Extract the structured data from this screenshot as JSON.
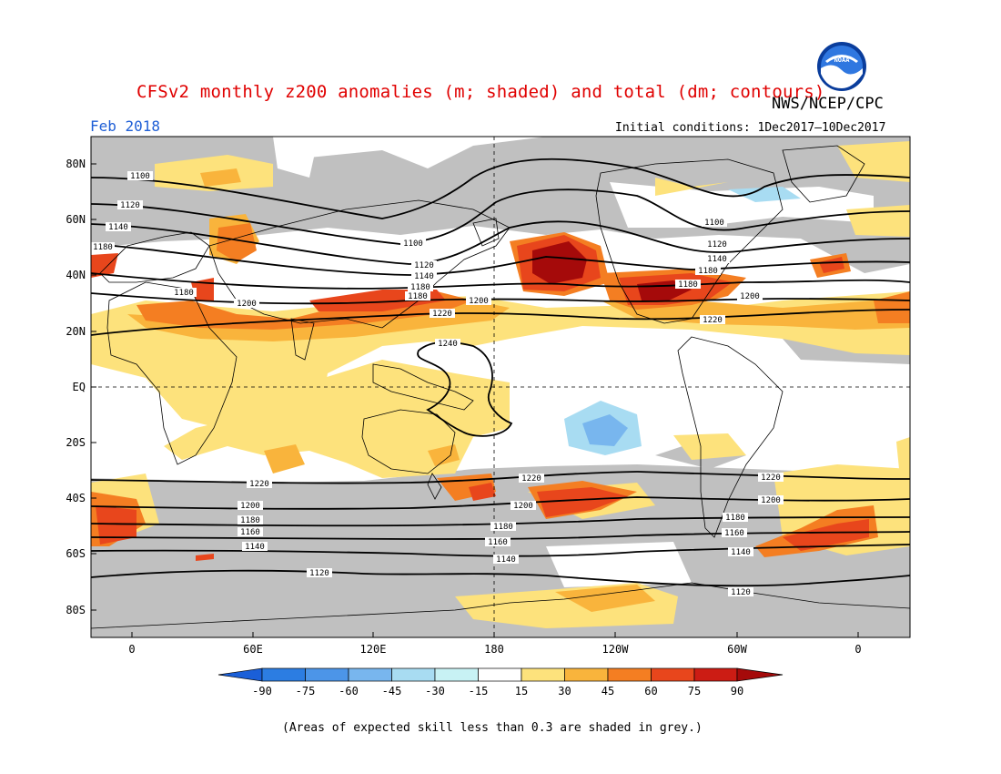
{
  "header": {
    "title": "CFSv2 monthly z200 anomalies (m; shaded) and total (dm; contours)",
    "agency": "NWS/NCEP/CPC",
    "period": "Feb 2018",
    "initial_conditions": "Initial conditions: 1Dec2017–10Dec2017",
    "logo_text": "NOAA"
  },
  "axes": {
    "lat_labels": [
      "80N",
      "60N",
      "40N",
      "20N",
      "EQ",
      "20S",
      "40S",
      "60S",
      "80S"
    ],
    "lon_labels": [
      "0",
      "60E",
      "120E",
      "180",
      "120W",
      "60W",
      "0"
    ]
  },
  "contour_labels": [
    "1100",
    "1120",
    "1140",
    "1160",
    "1180",
    "1200",
    "1220",
    "1240"
  ],
  "colorbar": {
    "ticks": [
      "-90",
      "-75",
      "-60",
      "-45",
      "-30",
      "-15",
      "15",
      "30",
      "45",
      "60",
      "75",
      "90"
    ],
    "colors": [
      "#1a5fd8",
      "#2c7de2",
      "#4c95e8",
      "#78b6ee",
      "#a8dcf2",
      "#c8f2f4",
      "#ffffff",
      "#fde27c",
      "#f9b43c",
      "#f47e22",
      "#e8461c",
      "#cc1c14",
      "#a50a0a"
    ],
    "skill_mask_color": "#c0c0c0"
  },
  "footnote": "(Areas of expected skill less than 0.3 are shaded in grey.)"
}
